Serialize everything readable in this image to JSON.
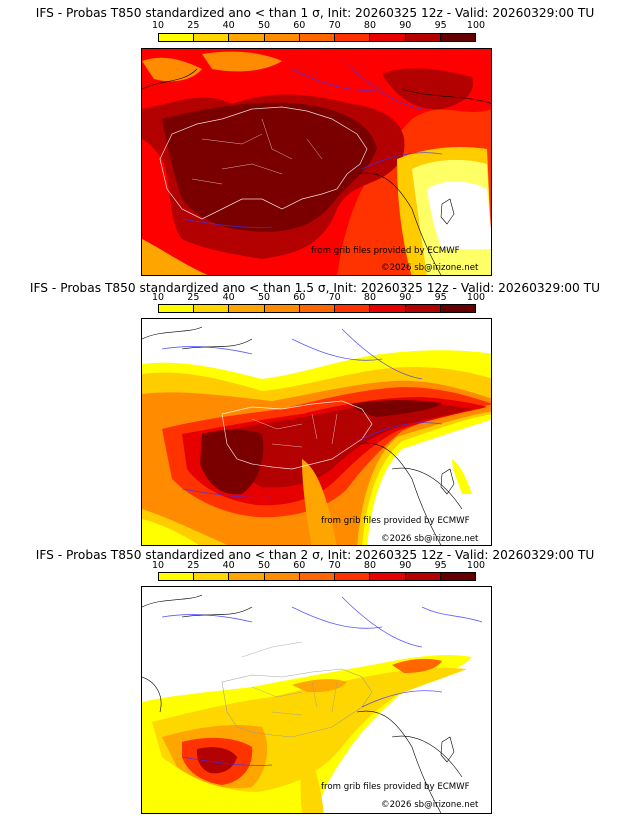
{
  "colorbar": {
    "ticks": [
      "10",
      "25",
      "40",
      "50",
      "60",
      "70",
      "80",
      "90",
      "95",
      "100"
    ],
    "colors": [
      "#ffff00",
      "#ffd700",
      "#ffa500",
      "#ff8c00",
      "#ff6600",
      "#ff3300",
      "#e60000",
      "#b30000",
      "#660000"
    ]
  },
  "panels": [
    {
      "title": "IFS - Probas T850  standardized ano < than 1 σ, Init: 20260325 12z - Valid: 20260329:00 TU",
      "credit_source": "from grib files provided by ECMWF",
      "credit_copyright": "©2026 sb@irizone.net",
      "intensity": 1
    },
    {
      "title": "IFS - Probas T850  standardized ano < than 1.5 σ, Init: 20260325 12z - Valid: 20260329:00 TU",
      "credit_source": "from grib files provided by ECMWF",
      "credit_copyright": "©2026 sb@irizone.net",
      "intensity": 2
    },
    {
      "title": "IFS - Probas T850  standardized ano < than 2 σ, Init: 20260325 12z - Valid: 20260329:00 TU",
      "credit_source": "from grib files provided by ECMWF",
      "credit_copyright": "©2026 sb@irizone.net",
      "intensity": 3
    }
  ]
}
